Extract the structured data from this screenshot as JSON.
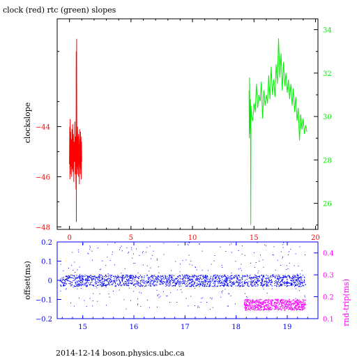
{
  "footer_text": "2014-12-14  boson.physics.ubc.ca",
  "chart_data": [
    {
      "type": "line",
      "title": "clock (red) rtc (green) slopes",
      "xlabel": "",
      "ylabel": "clockslope",
      "xlim": [
        -1,
        20.2
      ],
      "ylim": [
        -48.1,
        -39.7
      ],
      "y2lim": [
        24.8,
        34.5
      ],
      "x_ticks": [
        0,
        5,
        10,
        15,
        20
      ],
      "y_ticks": [
        -48,
        -46,
        -44
      ],
      "y2_ticks": [
        26,
        28,
        30,
        32,
        34
      ],
      "colors": {
        "axes": "#000000",
        "clock": "#ff0000",
        "rtc": "#00ee00",
        "y_tick_labels": "#ff0000",
        "y2_tick_labels": "#00ee00"
      },
      "series": [
        {
          "axis": "left",
          "color": "#ff0000",
          "points": [
            [
              0.0,
              -45.5
            ],
            [
              0.02,
              -44.0
            ],
            [
              0.04,
              -46.1
            ],
            [
              0.06,
              -43.7
            ],
            [
              0.08,
              -45.9
            ],
            [
              0.1,
              -44.2
            ],
            [
              0.12,
              -45.6
            ],
            [
              0.15,
              -44.5
            ],
            [
              0.18,
              -46.0
            ],
            [
              0.2,
              -44.1
            ],
            [
              0.23,
              -45.7
            ],
            [
              0.26,
              -43.9
            ],
            [
              0.29,
              -45.8
            ],
            [
              0.32,
              -44.3
            ],
            [
              0.35,
              -46.2
            ],
            [
              0.38,
              -44.6
            ],
            [
              0.41,
              -45.4
            ],
            [
              0.44,
              -43.8
            ],
            [
              0.47,
              -45.9
            ],
            [
              0.5,
              -44.4
            ],
            [
              0.53,
              -46.5
            ],
            [
              0.55,
              -41.0
            ],
            [
              0.56,
              -47.8
            ],
            [
              0.57,
              -43.5
            ],
            [
              0.58,
              -40.5
            ],
            [
              0.6,
              -45.6
            ],
            [
              0.62,
              -44.2
            ],
            [
              0.64,
              -45.9
            ],
            [
              0.66,
              -44.0
            ],
            [
              0.68,
              -45.7
            ],
            [
              0.7,
              -44.4
            ],
            [
              0.72,
              -46.0
            ],
            [
              0.74,
              -44.3
            ],
            [
              0.76,
              -45.5
            ],
            [
              0.78,
              -44.7
            ],
            [
              0.8,
              -46.3
            ],
            [
              0.82,
              -44.1
            ],
            [
              0.84,
              -45.6
            ],
            [
              0.86,
              -44.5
            ],
            [
              0.88,
              -45.9
            ],
            [
              0.9,
              -44.2
            ],
            [
              0.92,
              -45.7
            ],
            [
              0.94,
              -44.4
            ],
            [
              0.96,
              -46.1
            ],
            [
              0.98,
              -44.6
            ],
            [
              1.0,
              -45.4
            ]
          ]
        },
        {
          "axis": "right",
          "color": "#00ee00",
          "points": [
            [
              14.6,
              31.2
            ],
            [
              14.62,
              29.0
            ],
            [
              14.64,
              31.8
            ],
            [
              14.66,
              30.1
            ],
            [
              14.68,
              29.6
            ],
            [
              14.7,
              29.2
            ],
            [
              14.72,
              30.8
            ],
            [
              14.74,
              25.0
            ],
            [
              14.76,
              30.5
            ],
            [
              14.8,
              30.0
            ],
            [
              14.9,
              29.8
            ],
            [
              15.0,
              30.6
            ],
            [
              15.1,
              30.2
            ],
            [
              15.2,
              31.5
            ],
            [
              15.3,
              30.4
            ],
            [
              15.4,
              31.0
            ],
            [
              15.5,
              30.7
            ],
            [
              15.6,
              31.6
            ],
            [
              15.7,
              29.9
            ],
            [
              15.8,
              31.2
            ],
            [
              15.9,
              30.5
            ],
            [
              16.0,
              31.0
            ],
            [
              16.1,
              30.6
            ],
            [
              16.2,
              31.9
            ],
            [
              16.3,
              30.8
            ],
            [
              16.4,
              32.3
            ],
            [
              16.5,
              31.0
            ],
            [
              16.6,
              31.7
            ],
            [
              16.7,
              30.9
            ],
            [
              16.8,
              32.4
            ],
            [
              16.9,
              31.5
            ],
            [
              17.0,
              33.6
            ],
            [
              17.1,
              31.8
            ],
            [
              17.2,
              32.9
            ],
            [
              17.3,
              31.2
            ],
            [
              17.4,
              32.5
            ],
            [
              17.5,
              31.4
            ],
            [
              17.6,
              32.0
            ],
            [
              17.7,
              31.1
            ],
            [
              17.8,
              31.7
            ],
            [
              17.9,
              30.8
            ],
            [
              18.0,
              31.5
            ],
            [
              18.1,
              30.5
            ],
            [
              18.2,
              31.3
            ],
            [
              18.3,
              30.2
            ],
            [
              18.4,
              30.9
            ],
            [
              18.5,
              29.8
            ],
            [
              18.6,
              30.4
            ],
            [
              18.7,
              28.9
            ],
            [
              18.8,
              30.1
            ],
            [
              18.9,
              29.4
            ],
            [
              19.0,
              29.9
            ],
            [
              19.1,
              29.2
            ],
            [
              19.2,
              29.6
            ],
            [
              19.3,
              29.3
            ]
          ]
        }
      ]
    },
    {
      "type": "scatter",
      "title": "",
      "xlabel": "",
      "ylabel": "offset(ms)",
      "y2label": "rnd-trip(ms)",
      "xlim": [
        14.5,
        19.6
      ],
      "ylim": [
        -0.2,
        0.2
      ],
      "y2lim": [
        0.1,
        0.45
      ],
      "x_ticks": [
        15,
        16,
        17,
        18,
        19
      ],
      "y_ticks": [
        -0.2,
        -0.1,
        0,
        0.1,
        0.2
      ],
      "y2_ticks": [
        0.1,
        0.2,
        0.3,
        0.4
      ],
      "colors": {
        "axes": "#0000ff",
        "offset": "#0000ff",
        "rtt": "#ff00ff",
        "y2_labels": "#ff00ff"
      },
      "series": [
        {
          "name": "offset(ms)",
          "axis": "left",
          "color": "#0000ff",
          "x_range": [
            14.55,
            19.35
          ],
          "core_band": [
            -0.03,
            0.03
          ],
          "sparse_range": [
            -0.15,
            0.2
          ]
        },
        {
          "name": "rnd-trip(ms)",
          "axis": "right",
          "color": "#ff00ff",
          "x_range": [
            18.15,
            19.35
          ],
          "core_band": [
            0.14,
            0.19
          ]
        }
      ]
    }
  ]
}
